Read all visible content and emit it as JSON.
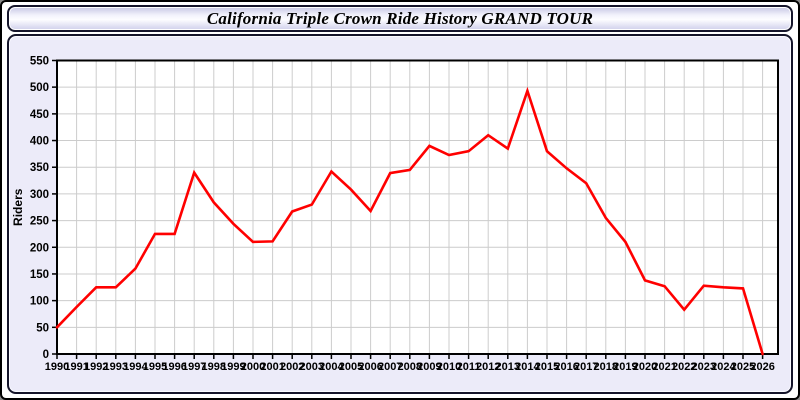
{
  "title_bar": {
    "title": "California Triple Crown Ride History GRAND TOUR"
  },
  "chart_data": {
    "type": "line",
    "title": "California Triple Crown Ride History GRAND TOUR",
    "xlabel": "",
    "ylabel": "Riders",
    "ylim": [
      0,
      550
    ],
    "ytick_step": 50,
    "yticks": [
      0,
      50,
      100,
      150,
      200,
      250,
      300,
      350,
      400,
      450,
      500,
      550
    ],
    "grid": true,
    "legend_position": "none",
    "x": [
      1990,
      1991,
      1992,
      1993,
      1994,
      1995,
      1996,
      1997,
      1998,
      1999,
      2000,
      2001,
      2002,
      2003,
      2004,
      2005,
      2006,
      2007,
      2008,
      2009,
      2010,
      2011,
      2012,
      2013,
      2014,
      2015,
      2016,
      2017,
      2018,
      2019,
      2020,
      2021,
      2022,
      2023,
      2024,
      2025,
      2026
    ],
    "series": [
      {
        "name": "Riders",
        "color": "#ff0000",
        "values": [
          50,
          88,
          125,
          125,
          160,
          225,
          225,
          340,
          284,
          244,
          210,
          211,
          267,
          280,
          342,
          308,
          268,
          339,
          345,
          390,
          373,
          380,
          410,
          385,
          493,
          380,
          348,
          320,
          255,
          210,
          138,
          127,
          83,
          128,
          125,
          123,
          0
        ]
      }
    ]
  },
  "colors": {
    "plot_background": "#ffffff",
    "panel_background": "#ecebf9",
    "gridline": "#cccccc",
    "axis": "#000000",
    "text": "#000000"
  }
}
